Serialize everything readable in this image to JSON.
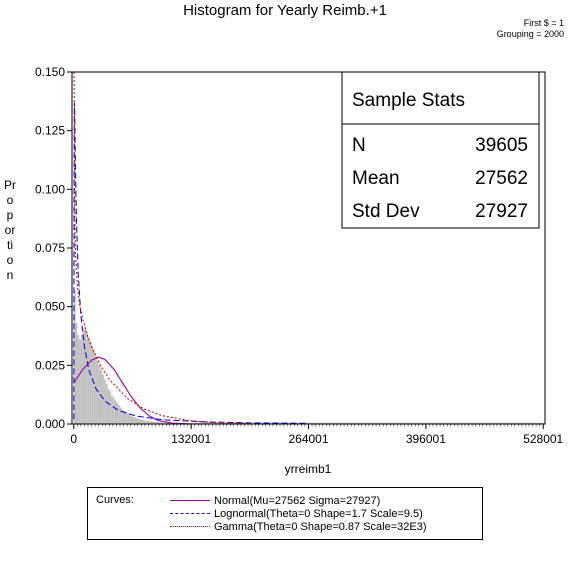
{
  "chart_data": {
    "type": "bar",
    "title": "Histogram for Yearly Reimb.+1",
    "notes": [
      "First $ = 1",
      "Grouping = 2000"
    ],
    "xlabel": "yrreimb1",
    "ylabel": "Proportion",
    "xlim": [
      -2000,
      530000
    ],
    "ylim": [
      0,
      0.15
    ],
    "x_ticks": [
      1,
      132001,
      264001,
      396001,
      528001
    ],
    "x_tick_labels": [
      "0",
      "132001",
      "264001",
      "396001",
      "528001"
    ],
    "y_ticks": [
      0,
      0.025,
      0.05,
      0.075,
      0.1,
      0.125,
      0.15
    ],
    "y_tick_labels": [
      "0.000",
      "0.025",
      "0.050",
      "0.075",
      "0.100",
      "0.125",
      "0.150"
    ],
    "bin_width": 2000,
    "bin_starts": [
      1,
      2001,
      4001,
      6001,
      8001,
      10001,
      12001,
      14001,
      16001,
      18001,
      20001,
      22001,
      24001,
      26001,
      28001,
      30001,
      32001,
      34001,
      36001,
      38001,
      40001,
      42001,
      44001,
      46001,
      48001,
      50001,
      52001,
      54001,
      56001,
      58001,
      60001,
      62001,
      64001,
      66001,
      68001,
      70001,
      72001,
      74001,
      76001,
      78001,
      80001,
      84001,
      88001,
      92001,
      96001,
      100001,
      110001,
      120001,
      130001,
      140001,
      160001,
      180001,
      200001,
      240001
    ],
    "values": [
      0.057,
      0.043,
      0.038,
      0.036,
      0.038,
      0.04,
      0.041,
      0.039,
      0.037,
      0.035,
      0.033,
      0.031,
      0.029,
      0.027,
      0.025,
      0.023,
      0.021,
      0.019,
      0.017,
      0.015,
      0.014,
      0.012,
      0.011,
      0.01,
      0.009,
      0.008,
      0.007,
      0.006,
      0.0055,
      0.005,
      0.0045,
      0.004,
      0.0035,
      0.003,
      0.0028,
      0.0025,
      0.0022,
      0.002,
      0.0018,
      0.0016,
      0.0014,
      0.0012,
      0.001,
      0.0009,
      0.0008,
      0.0006,
      0.0005,
      0.0004,
      0.0003,
      0.0002,
      0.00015,
      0.0001,
      0.0001,
      5e-05
    ],
    "series": [
      {
        "name": "Normal(Mu=27562 Sigma=27927)",
        "color": "#9900aa",
        "dash": "solid",
        "label": "Normal(Mu=27562 Sigma=27927)",
        "x": [
          1,
          10001,
          20001,
          27562,
          35001,
          45001,
          55001,
          65001,
          75001,
          85001,
          95001,
          110001,
          130001
        ],
        "y": [
          0.0175,
          0.0232,
          0.0272,
          0.0285,
          0.0275,
          0.0234,
          0.0174,
          0.0115,
          0.0067,
          0.0034,
          0.0015,
          0.0004,
          4e-05
        ]
      },
      {
        "name": "Lognormal(Theta=0 Shape=1.7 Scale=9.5)",
        "color": "#1010cc",
        "dash": "6,3",
        "label": "Lognormal(Theta=0 Shape=1.7 Scale=9.5)",
        "x": [
          50,
          150,
          300,
          500,
          700,
          1000,
          1500,
          2000,
          3000,
          5000,
          8000,
          12000,
          17000,
          25000,
          35000,
          50000,
          70000,
          100000,
          150000,
          200000,
          264001
        ],
        "y": [
          0.002,
          0.04,
          0.09,
          0.125,
          0.137,
          0.134,
          0.12,
          0.107,
          0.087,
          0.064,
          0.046,
          0.033,
          0.023,
          0.015,
          0.0098,
          0.0058,
          0.0034,
          0.0018,
          0.00085,
          0.00048,
          0.00027
        ]
      },
      {
        "name": "Gamma(Theta=0 Shape=0.87 Scale=32E3)",
        "color": "#cc1010",
        "dash": "2,2",
        "label": "Gamma(Theta=0 Shape=0.87 Scale=32E3)",
        "x": [
          300,
          600,
          1000,
          2000,
          4000,
          7000,
          10000,
          15000,
          20000,
          30000,
          40000,
          60000,
          80000,
          100000,
          130000,
          160000,
          200000
        ],
        "y": [
          0.15,
          0.13,
          0.092,
          0.072,
          0.059,
          0.05,
          0.045,
          0.038,
          0.033,
          0.025,
          0.019,
          0.011,
          0.0062,
          0.0035,
          0.0014,
          0.00056,
          0.00017
        ]
      }
    ],
    "bar_color": "#c0c0c0",
    "inset_table": {
      "title": "Sample Stats",
      "rows": [
        {
          "label": "N",
          "value": "39605"
        },
        {
          "label": "Mean",
          "value": "27562"
        },
        {
          "label": "Std Dev",
          "value": "27927"
        }
      ]
    },
    "legend": {
      "heading": "Curves:",
      "position": "bottom"
    },
    "grid": false
  }
}
